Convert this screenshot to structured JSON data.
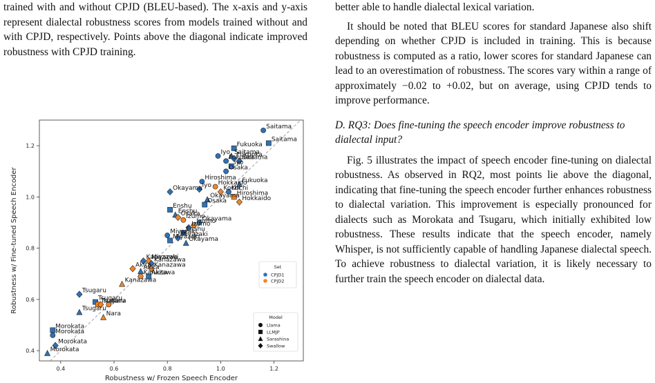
{
  "left_column": {
    "caption_text": "trained with and without CPJD (BLEU-based). The x-axis and y-axis represent dialectal robustness scores from models trained without and with CPJD, respectively. Points above the diagonal indicate improved robustness with CPJD training."
  },
  "right_column": {
    "para_top": "better able to handle dialectal lexical variation.",
    "para_bleu": "It should be noted that BLEU scores for standard Japanese also shift depending on whether CPJD is included in training. This is because robustness is computed as a ratio, lower scores for standard Japanese can lead to an overestimation of robustness. The scores vary within a range of approximately −0.02 to +0.02, but on average, using CPJD tends to improve performance.",
    "section_heading": "D. RQ3: Does fine-tuning the speech encoder improve robustness to dialectal input?",
    "para_rq3": "Fig. 5 illustrates the impact of speech encoder fine-tuning on dialectal robustness. As observed in RQ2, most points lie above the diagonal, indicating that fine-tuning the speech encoder further enhances robustness to dialectal variation. This improvement is especially pronounced for dialects such as Morokata and Tsugaru, which initially exhibited low robustness. These results indicate that the speech encoder, namely Whisper, is not sufficiently capable of handling Japanese dialectal speech. To achieve robustness to dialectal variation, it is likely necessary to further train the speech encoder on dialectal data."
  },
  "colors": {
    "cpjd1": "#2f72b5",
    "cpjd2": "#f28526",
    "edge": "#222222"
  },
  "chart_data": {
    "type": "scatter",
    "xlabel": "Robustness w/ Frozen Speech Encoder",
    "ylabel": "Robustness w/ Fine-tuned Speech Encoder",
    "xlim": [
      0.32,
      1.31
    ],
    "ylim": [
      0.36,
      1.3
    ],
    "xticks": [
      "0.4",
      "0.6",
      "0.8",
      "1.0",
      "1.2"
    ],
    "xtick_values": [
      0.4,
      0.6,
      0.8,
      1.0,
      1.2
    ],
    "yticks": [
      "0.4",
      "0.6",
      "0.8",
      "1.0",
      "1.2"
    ],
    "ytick_values": [
      0.4,
      0.6,
      0.8,
      1.0,
      1.2
    ],
    "diagonal": true,
    "legend_set": {
      "title": "Set",
      "items": [
        "CPJD1",
        "CPJD2"
      ],
      "placement": "right-middle"
    },
    "legend_model": {
      "title": "Model",
      "items": [
        "Llama",
        "LLMJP",
        "Sarashina",
        "Swallow"
      ],
      "placement": "lower-right"
    },
    "points": [
      {
        "x": 1.16,
        "y": 1.26,
        "set": "CPJD1",
        "model": "Llama",
        "label": "Saitama"
      },
      {
        "x": 1.18,
        "y": 1.21,
        "set": "CPJD1",
        "model": "LLMJP",
        "label": "Saitama"
      },
      {
        "x": 1.05,
        "y": 1.19,
        "set": "CPJD1",
        "model": "LLMJP",
        "label": "Fukuoka"
      },
      {
        "x": 1.04,
        "y": 1.16,
        "set": "CPJD1",
        "model": "Sarashina",
        "label": "Saitama"
      },
      {
        "x": 0.99,
        "y": 1.16,
        "set": "CPJD1",
        "model": "Llama",
        "label": "Iyo"
      },
      {
        "x": 1.05,
        "y": 1.15,
        "set": "CPJD1",
        "model": "Swallow",
        "label": "Fukuoka"
      },
      {
        "x": 1.02,
        "y": 1.14,
        "set": "CPJD1",
        "model": "Llama",
        "label": "Fukuoka"
      },
      {
        "x": 1.07,
        "y": 1.14,
        "set": "CPJD1",
        "model": "Swallow",
        "label": "Saitama"
      },
      {
        "x": 1.04,
        "y": 1.12,
        "set": "CPJD1",
        "model": "LLMJP",
        "label": "Iyo"
      },
      {
        "x": 1.02,
        "y": 1.1,
        "set": "CPJD1",
        "model": "Llama",
        "label": "Osaka"
      },
      {
        "x": 0.81,
        "y": 1.02,
        "set": "CPJD1",
        "model": "Swallow",
        "label": "Okayama"
      },
      {
        "x": 0.93,
        "y": 1.06,
        "set": "CPJD1",
        "model": "Llama",
        "label": "Hiroshima"
      },
      {
        "x": 1.07,
        "y": 1.05,
        "set": "CPJD1",
        "model": "Sarashina",
        "label": "Fukuoka"
      },
      {
        "x": 0.92,
        "y": 1.03,
        "set": "CPJD1",
        "model": "Swallow",
        "label": "Iyo"
      },
      {
        "x": 0.98,
        "y": 1.04,
        "set": "CPJD2",
        "model": "Llama",
        "label": "Hokkaido"
      },
      {
        "x": 1.03,
        "y": 1.02,
        "set": "CPJD1",
        "model": "Llama",
        "label": "Kochi"
      },
      {
        "x": 1.0,
        "y": 1.02,
        "set": "CPJD2",
        "model": "Swallow",
        "label": "Kochi"
      },
      {
        "x": 1.05,
        "y": 1.0,
        "set": "CPJD2",
        "model": "LLMJP",
        "label": "Hiroshima"
      },
      {
        "x": 0.95,
        "y": 0.99,
        "set": "CPJD1",
        "model": "Sarashina",
        "label": "Okayama"
      },
      {
        "x": 1.07,
        "y": 0.98,
        "set": "CPJD2",
        "model": "Swallow",
        "label": "Hokkaido"
      },
      {
        "x": 0.94,
        "y": 0.97,
        "set": "CPJD1",
        "model": "LLMJP",
        "label": "Osaka"
      },
      {
        "x": 0.81,
        "y": 0.95,
        "set": "CPJD1",
        "model": "LLMJP",
        "label": "Enshu"
      },
      {
        "x": 0.83,
        "y": 0.93,
        "set": "CPJD1",
        "model": "Sarashina",
        "label": "Enshu"
      },
      {
        "x": 0.84,
        "y": 0.92,
        "set": "CPJD2",
        "model": "Swallow",
        "label": "Osaka"
      },
      {
        "x": 0.86,
        "y": 0.91,
        "set": "CPJD2",
        "model": "Llama",
        "label": "Izumo"
      },
      {
        "x": 0.92,
        "y": 0.9,
        "set": "CPJD1",
        "model": "Llama",
        "label": "Okayama"
      },
      {
        "x": 0.9,
        "y": 0.89,
        "set": "CPJD2",
        "model": "Llama",
        "label": "Izumo"
      },
      {
        "x": 0.88,
        "y": 0.88,
        "set": "CPJD1",
        "model": "Swallow",
        "label": "Izumo"
      },
      {
        "x": 0.86,
        "y": 0.86,
        "set": "CPJD1",
        "model": "LLMJP",
        "label": "Enshu"
      },
      {
        "x": 0.8,
        "y": 0.85,
        "set": "CPJD1",
        "model": "Llama",
        "label": "Miyazaki"
      },
      {
        "x": 0.81,
        "y": 0.83,
        "set": "CPJD1",
        "model": "LLMJP",
        "label": "Miyazaki"
      },
      {
        "x": 0.84,
        "y": 0.84,
        "set": "CPJD1",
        "model": "Swallow",
        "label": "Miyazaki"
      },
      {
        "x": 0.87,
        "y": 0.82,
        "set": "CPJD1",
        "model": "Sarashina",
        "label": "Okayama"
      },
      {
        "x": 0.71,
        "y": 0.75,
        "set": "CPJD1",
        "model": "Swallow",
        "label": "Kanazawa"
      },
      {
        "x": 0.73,
        "y": 0.75,
        "set": "CPJD2",
        "model": "Swallow",
        "label": "Miyazaki"
      },
      {
        "x": 0.74,
        "y": 0.74,
        "set": "CPJD1",
        "model": "Swallow",
        "label": "Kanazawa"
      },
      {
        "x": 0.74,
        "y": 0.72,
        "set": "CPJD2",
        "model": "Swallow",
        "label": "Kanazawa"
      },
      {
        "x": 0.67,
        "y": 0.72,
        "set": "CPJD2",
        "model": "Swallow",
        "label": "Akita"
      },
      {
        "x": 0.7,
        "y": 0.71,
        "set": "CPJD1",
        "model": "Sarashina",
        "label": "Akita"
      },
      {
        "x": 0.73,
        "y": 0.69,
        "set": "CPJD1",
        "model": "LLMJP",
        "label": "Akita"
      },
      {
        "x": 0.7,
        "y": 0.69,
        "set": "CPJD2",
        "model": "Llama",
        "label": "Kanazawa"
      },
      {
        "x": 0.63,
        "y": 0.66,
        "set": "CPJD2",
        "model": "Sarashina",
        "label": "Kanazawa"
      },
      {
        "x": 0.47,
        "y": 0.62,
        "set": "CPJD1",
        "model": "Swallow",
        "label": "Tsugaru"
      },
      {
        "x": 0.53,
        "y": 0.59,
        "set": "CPJD1",
        "model": "LLMJP",
        "label": "Tsugaru"
      },
      {
        "x": 0.54,
        "y": 0.58,
        "set": "CPJD2",
        "model": "LLMJP",
        "label": "Tsugaru"
      },
      {
        "x": 0.55,
        "y": 0.58,
        "set": "CPJD2",
        "model": "Swallow",
        "label": "Nara"
      },
      {
        "x": 0.58,
        "y": 0.58,
        "set": "CPJD2",
        "model": "Llama",
        "label": "Nara"
      },
      {
        "x": 0.47,
        "y": 0.55,
        "set": "CPJD1",
        "model": "Sarashina",
        "label": "Tsugaru"
      },
      {
        "x": 0.56,
        "y": 0.53,
        "set": "CPJD2",
        "model": "Sarashina",
        "label": "Nara"
      },
      {
        "x": 0.37,
        "y": 0.48,
        "set": "CPJD1",
        "model": "LLMJP",
        "label": "Morokata"
      },
      {
        "x": 0.37,
        "y": 0.46,
        "set": "CPJD1",
        "model": "Llama",
        "label": "Morokata"
      },
      {
        "x": 0.38,
        "y": 0.42,
        "set": "CPJD1",
        "model": "Swallow",
        "label": "Morokata"
      },
      {
        "x": 0.35,
        "y": 0.39,
        "set": "CPJD1",
        "model": "Sarashina",
        "label": "Morokata"
      }
    ]
  }
}
